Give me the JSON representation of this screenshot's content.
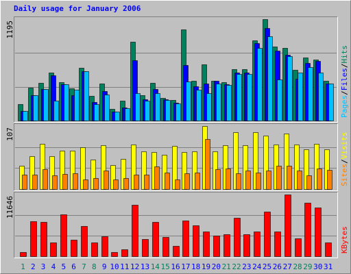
{
  "chart_data": [
    {
      "type": "bar",
      "title": "Daily usage for January 2006",
      "ylim": [
        0,
        1195
      ],
      "yticks": [
        1195
      ],
      "legend_separator": "/",
      "series": [
        {
          "name": "Hits",
          "color": "#00805c",
          "values": [
            194,
            388,
            444,
            565,
            452,
            380,
            622,
            291,
            436,
            137,
            234,
            929,
            299,
            444,
            266,
            242,
            1074,
            468,
            662,
            468,
            452,
            606,
            606,
            945,
            1195,
            872,
            856,
            598,
            743,
            719,
            468
          ]
        },
        {
          "name": "Files",
          "color": "#0000ff",
          "values": [
            113,
            299,
            371,
            533,
            428,
            299,
            582,
            218,
            347,
            105,
            153,
            711,
            250,
            371,
            250,
            210,
            654,
            404,
            436,
            468,
            428,
            565,
            565,
            913,
            1090,
            824,
            775,
            493,
            678,
            703,
            436
          ]
        },
        {
          "name": "Pages",
          "color": "#00c0ff",
          "values": [
            113,
            299,
            371,
            234,
            428,
            363,
            582,
            194,
            307,
            105,
            145,
            323,
            234,
            323,
            242,
            202,
            460,
            363,
            323,
            436,
            420,
            549,
            549,
            856,
            993,
            484,
            759,
            565,
            630,
            565,
            436
          ]
        }
      ]
    },
    {
      "type": "bar",
      "ylim": [
        0,
        107
      ],
      "yticks": [
        107
      ],
      "legend_separator": "/",
      "series": [
        {
          "name": "Visits",
          "color": "#ffff00",
          "values": [
            40,
            56,
            77,
            56,
            65,
            65,
            71,
            50,
            74,
            41,
            51,
            76,
            64,
            63,
            58,
            73,
            63,
            64,
            107,
            64,
            74,
            96,
            74,
            96,
            91,
            76,
            94,
            76,
            67,
            77,
            68
          ]
        },
        {
          "name": "Sites",
          "color": "#ff8000",
          "values": [
            24,
            25,
            34,
            23,
            26,
            27,
            16,
            19,
            31,
            16,
            19,
            24,
            24,
            38,
            28,
            16,
            27,
            28,
            85,
            34,
            35,
            27,
            31,
            28,
            31,
            40,
            40,
            31,
            23,
            35,
            32
          ]
        }
      ]
    },
    {
      "type": "bar",
      "ylim": [
        0,
        11646
      ],
      "yticks": [
        11646
      ],
      "categories": [
        "1",
        "2",
        "3",
        "4",
        "5",
        "6",
        "7",
        "8",
        "9",
        "10",
        "11",
        "12",
        "13",
        "14",
        "15",
        "16",
        "17",
        "18",
        "19",
        "20",
        "21",
        "22",
        "23",
        "24",
        "25",
        "26",
        "27",
        "28",
        "29",
        "30",
        "31"
      ],
      "category_colors": [
        "#00805c",
        "#0000ff",
        "#0000ff",
        "#0000ff",
        "#0000ff",
        "#0000ff",
        "#00805c",
        "#00805c",
        "#0000ff",
        "#0000ff",
        "#0000ff",
        "#0000ff",
        "#0000ff",
        "#00805c",
        "#00805c",
        "#0000ff",
        "#0000ff",
        "#0000ff",
        "#0000ff",
        "#0000ff",
        "#00805c",
        "#00805c",
        "#0000ff",
        "#0000ff",
        "#0000ff",
        "#0000ff",
        "#0000ff",
        "#00805c",
        "#00805c",
        "#0000ff",
        "#0000ff"
      ],
      "series": [
        {
          "name": "KBytes",
          "color": "#ff0000",
          "values": [
            768,
            6655,
            6527,
            2560,
            7934,
            3071,
            5631,
            2560,
            3711,
            768,
            1280,
            9727,
            3199,
            6527,
            3583,
            1920,
            6783,
            5759,
            4607,
            3839,
            4095,
            7295,
            4095,
            4607,
            8447,
            4607,
            11646,
            3327,
            10111,
            9215,
            2560
          ]
        }
      ]
    }
  ]
}
